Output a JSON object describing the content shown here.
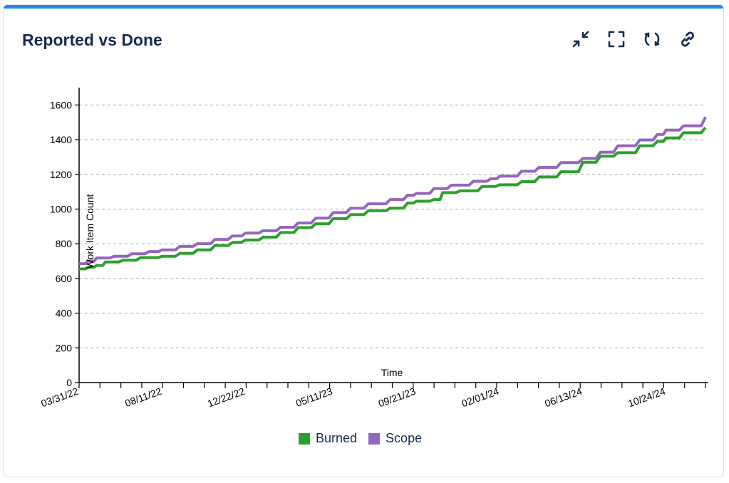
{
  "card": {
    "title": "Reported vs Done"
  },
  "toolbar": {
    "icons": [
      "collapse-icon",
      "expand-icon",
      "refresh-icon",
      "link-icon"
    ]
  },
  "colors": {
    "accent": "#2684ff",
    "title": "#172b4d",
    "burned": "#2ca02c",
    "scope": "#9467bd",
    "grid": "#aaaaaa"
  },
  "chart_data": {
    "type": "line",
    "xlabel": "Time",
    "ylabel": "Work Item Count",
    "ylim": [
      0,
      1700
    ],
    "yticks": [
      0,
      200,
      400,
      600,
      800,
      1000,
      1200,
      1400,
      1600
    ],
    "x_range": [
      "2022-03-31",
      "2024-12-26"
    ],
    "xticks": [
      "03/31/22",
      "08/11/22",
      "12/22/22",
      "05/11/23",
      "09/21/23",
      "02/01/24",
      "06/13/24",
      "10/24/24"
    ],
    "grid": "horizontal dashed",
    "legend_placement": "bottom",
    "series": [
      {
        "name": "Burned",
        "color": "#2ca02c",
        "points": [
          [
            "2022-03-31",
            655
          ],
          [
            "2022-04-14",
            665
          ],
          [
            "2022-04-28",
            675
          ],
          [
            "2022-05-12",
            695
          ],
          [
            "2022-06-09",
            705
          ],
          [
            "2022-07-07",
            720
          ],
          [
            "2022-08-11",
            728
          ],
          [
            "2022-09-08",
            745
          ],
          [
            "2022-10-06",
            765
          ],
          [
            "2022-11-03",
            790
          ],
          [
            "2022-12-01",
            808
          ],
          [
            "2022-12-22",
            822
          ],
          [
            "2023-01-19",
            838
          ],
          [
            "2023-02-16",
            865
          ],
          [
            "2023-03-16",
            893
          ],
          [
            "2023-04-13",
            915
          ],
          [
            "2023-05-11",
            945
          ],
          [
            "2023-06-08",
            968
          ],
          [
            "2023-07-06",
            990
          ],
          [
            "2023-08-10",
            1005
          ],
          [
            "2023-09-07",
            1035
          ],
          [
            "2023-09-21",
            1045
          ],
          [
            "2023-10-19",
            1055
          ],
          [
            "2023-11-02",
            1095
          ],
          [
            "2023-11-30",
            1105
          ],
          [
            "2024-01-04",
            1130
          ],
          [
            "2024-02-01",
            1140
          ],
          [
            "2024-03-07",
            1158
          ],
          [
            "2024-04-04",
            1185
          ],
          [
            "2024-05-09",
            1215
          ],
          [
            "2024-06-13",
            1270
          ],
          [
            "2024-07-11",
            1305
          ],
          [
            "2024-08-08",
            1325
          ],
          [
            "2024-09-12",
            1365
          ],
          [
            "2024-10-10",
            1390
          ],
          [
            "2024-10-24",
            1410
          ],
          [
            "2024-11-21",
            1440
          ],
          [
            "2024-12-26",
            1470
          ]
        ]
      },
      {
        "name": "Scope",
        "color": "#9467bd",
        "points": [
          [
            "2022-03-31",
            685
          ],
          [
            "2022-04-14",
            700
          ],
          [
            "2022-04-28",
            718
          ],
          [
            "2022-05-26",
            728
          ],
          [
            "2022-06-23",
            742
          ],
          [
            "2022-07-21",
            755
          ],
          [
            "2022-08-11",
            765
          ],
          [
            "2022-09-08",
            785
          ],
          [
            "2022-10-06",
            800
          ],
          [
            "2022-11-03",
            825
          ],
          [
            "2022-12-01",
            845
          ],
          [
            "2022-12-22",
            862
          ],
          [
            "2023-01-19",
            875
          ],
          [
            "2023-02-16",
            895
          ],
          [
            "2023-03-16",
            920
          ],
          [
            "2023-04-13",
            948
          ],
          [
            "2023-05-11",
            980
          ],
          [
            "2023-06-08",
            1005
          ],
          [
            "2023-07-06",
            1030
          ],
          [
            "2023-08-10",
            1055
          ],
          [
            "2023-09-07",
            1080
          ],
          [
            "2023-09-21",
            1090
          ],
          [
            "2023-10-19",
            1118
          ],
          [
            "2023-11-16",
            1138
          ],
          [
            "2023-12-21",
            1160
          ],
          [
            "2024-01-18",
            1175
          ],
          [
            "2024-02-01",
            1190
          ],
          [
            "2024-03-07",
            1218
          ],
          [
            "2024-04-04",
            1240
          ],
          [
            "2024-05-09",
            1268
          ],
          [
            "2024-06-13",
            1292
          ],
          [
            "2024-07-11",
            1328
          ],
          [
            "2024-08-08",
            1365
          ],
          [
            "2024-09-12",
            1398
          ],
          [
            "2024-10-10",
            1430
          ],
          [
            "2024-10-24",
            1455
          ],
          [
            "2024-11-21",
            1480
          ],
          [
            "2024-12-26",
            1530
          ]
        ]
      }
    ]
  }
}
